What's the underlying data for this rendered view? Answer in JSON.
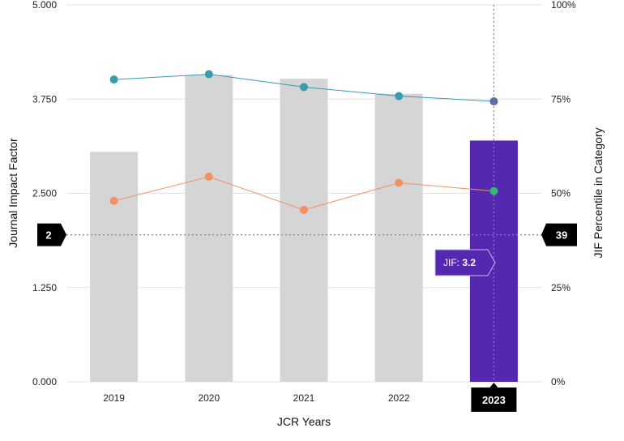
{
  "chart_data": {
    "type": "bar",
    "categories": [
      "2019",
      "2020",
      "2021",
      "2022",
      "2023"
    ],
    "xlabel": "JCR Years",
    "ylabel": "Journal Impact Factor",
    "y2label": "JIF Percentile in Category",
    "ylim": [
      0,
      5
    ],
    "y2lim": [
      0,
      100
    ],
    "y_ticks": [
      "0.000",
      "1.250",
      "2.500",
      "3.750",
      "5.000"
    ],
    "y2_ticks": [
      "0%",
      "25%",
      "50%",
      "75%",
      "100%"
    ],
    "grid": true,
    "bars": {
      "values": [
        3.05,
        4.07,
        4.02,
        3.82,
        3.2
      ],
      "color": "#d4d5d4",
      "highlight_color": "#5528b0",
      "highlight_index": 4
    },
    "series": [
      {
        "values": [
          80.2,
          81.6,
          78.2,
          75.8,
          74.4
        ],
        "axis": "right",
        "color": "#3a9aae"
      },
      {
        "values": [
          48.0,
          54.4,
          45.6,
          52.8,
          50.6
        ],
        "axis": "right",
        "color": "#f39063"
      }
    ],
    "highlight_marker_colors": [
      "#5c6aa8",
      "#2ebd6c"
    ],
    "crosshair": {
      "y_left_label": "2",
      "y_right_label": "39",
      "x_label": "2023",
      "y_value": 1.95
    },
    "tooltip": {
      "label": "JIF: ",
      "value": "3.2"
    }
  }
}
